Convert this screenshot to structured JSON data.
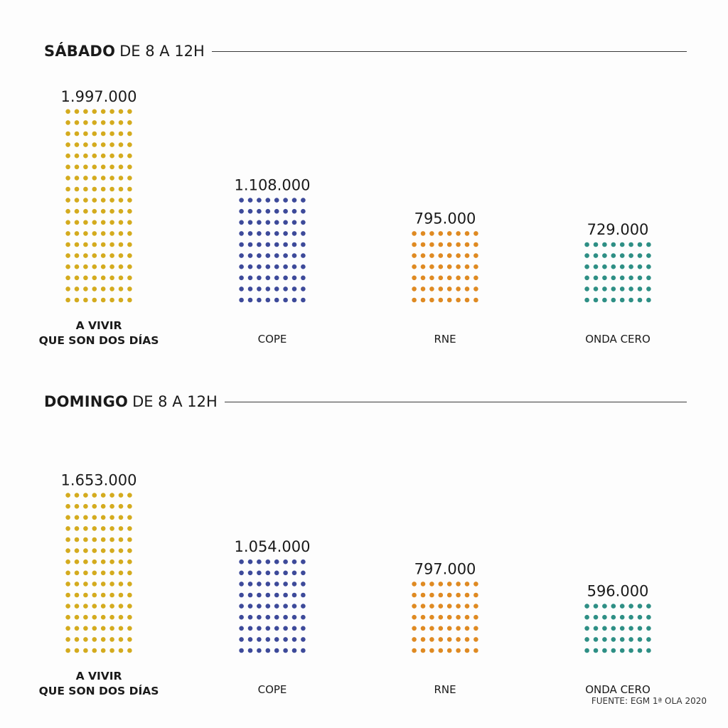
{
  "source": "FUENTE: EGM 1ª OLA 2020",
  "chart_data": [
    {
      "type": "bar",
      "title_bold": "SÁBADO",
      "title_light": "DE 8 A 12H",
      "categories": [
        [
          "A VIVIR",
          "QUE SON DOS DÍAS"
        ],
        [
          "COPE"
        ],
        [
          "RNE"
        ],
        [
          "ONDA CERO"
        ]
      ],
      "values": [
        1997000,
        1108000,
        795000,
        729000
      ],
      "value_labels": [
        "1.997.000",
        "1.108.000",
        "795.000",
        "729.000"
      ],
      "colors": [
        "#d4ab1e",
        "#3d4a9a",
        "#df8a22",
        "#2e8f85"
      ],
      "highlight_index": 0
    },
    {
      "type": "bar",
      "title_bold": "DOMINGO",
      "title_light": "DE 8 A 12H",
      "categories": [
        [
          "A VIVIR",
          "QUE SON DOS DÍAS"
        ],
        [
          "COPE"
        ],
        [
          "RNE"
        ],
        [
          "ONDA CERO"
        ]
      ],
      "values": [
        1653000,
        1054000,
        797000,
        596000
      ],
      "value_labels": [
        "1.653.000",
        "1.054.000",
        "797.000",
        "596.000"
      ],
      "colors": [
        "#d4ab1e",
        "#3d4a9a",
        "#df8a22",
        "#2e8f85"
      ],
      "highlight_index": 0
    }
  ]
}
